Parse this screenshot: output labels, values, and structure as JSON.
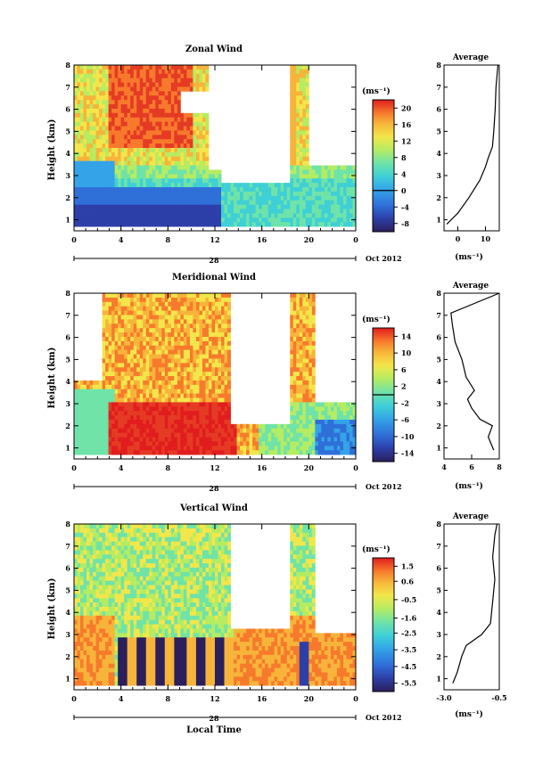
{
  "chart_data": [
    {
      "type": "heatmap",
      "title": "Zonal Wind",
      "ylabel": "Height (km)",
      "xticks": [
        "0",
        "4",
        "8",
        "12",
        "16",
        "20",
        "0"
      ],
      "yticks": [
        "1",
        "2",
        "3",
        "4",
        "5",
        "6",
        "7",
        "8"
      ],
      "date_label": "Oct 2012",
      "date_day": "28",
      "units": "(ms⁻¹)",
      "colorbar": {
        "ticks": [
          "20",
          "16",
          "12",
          "8",
          "4",
          "0",
          "-4",
          "-8"
        ],
        "min": -10,
        "max": 22,
        "zero_line": 0
      },
      "profile": {
        "title": "Average",
        "xticks": [
          "0",
          "10"
        ],
        "xlim": [
          -5,
          15
        ],
        "yticks": [
          "1",
          "2",
          "3",
          "4",
          "5",
          "6",
          "7",
          "8"
        ],
        "xlabel": "(ms⁻¹)",
        "points": [
          [
            -4,
            0.8
          ],
          [
            0,
            1.3
          ],
          [
            4,
            2.0
          ],
          [
            8,
            2.8
          ],
          [
            10,
            3.4
          ],
          [
            11,
            3.8
          ],
          [
            12.5,
            4.3
          ],
          [
            13,
            5.0
          ],
          [
            13.5,
            6.0
          ],
          [
            13.8,
            7.0
          ],
          [
            14.5,
            8.0
          ]
        ]
      }
    },
    {
      "type": "heatmap",
      "title": "Meridional Wind",
      "ylabel": "Height (km)",
      "xticks": [
        "0",
        "4",
        "8",
        "12",
        "16",
        "20",
        "0"
      ],
      "yticks": [
        "1",
        "2",
        "3",
        "4",
        "5",
        "6",
        "7",
        "8"
      ],
      "date_label": "Oct 2012",
      "date_day": "28",
      "units": "(ms⁻¹)",
      "colorbar": {
        "ticks": [
          "14",
          "10",
          "6",
          "2",
          "-2",
          "-6",
          "-10",
          "-14"
        ],
        "min": -16,
        "max": 16,
        "zero_line": 0
      },
      "profile": {
        "title": "Average",
        "xticks": [
          "4",
          "6",
          "8"
        ],
        "xlim": [
          4,
          8
        ],
        "yticks": [
          "1",
          "2",
          "3",
          "4",
          "5",
          "6",
          "7",
          "8"
        ],
        "xlabel": "(ms⁻¹)",
        "points": [
          [
            7.6,
            0.9
          ],
          [
            7.2,
            1.5
          ],
          [
            7.5,
            2.0
          ],
          [
            6.6,
            2.3
          ],
          [
            6.0,
            2.8
          ],
          [
            5.7,
            3.2
          ],
          [
            6.2,
            3.6
          ],
          [
            5.6,
            4.2
          ],
          [
            5.3,
            5.0
          ],
          [
            4.8,
            5.8
          ],
          [
            4.6,
            6.6
          ],
          [
            4.5,
            7.1
          ],
          [
            8.0,
            8.0
          ]
        ]
      }
    },
    {
      "type": "heatmap",
      "title": "Vertical Wind",
      "ylabel": "Height (km)",
      "xlabel": "Local Time",
      "xticks": [
        "0",
        "4",
        "8",
        "12",
        "16",
        "20",
        "0"
      ],
      "yticks": [
        "1",
        "2",
        "3",
        "4",
        "5",
        "6",
        "7",
        "8"
      ],
      "date_label": "Oct 2012",
      "date_day": "28",
      "units": "(ms⁻¹)",
      "colorbar": {
        "ticks": [
          "1.5",
          "0.6",
          "-0.5",
          "-1.6",
          "-2.5",
          "-3.5",
          "-4.5",
          "-5.5"
        ],
        "min": -6.0,
        "max": 2.0,
        "zero_line": null
      },
      "profile": {
        "title": "Average",
        "xticks": [
          "-3.0",
          "-0.5"
        ],
        "xlim": [
          -3.0,
          -0.5
        ],
        "yticks": [
          "1",
          "2",
          "3",
          "4",
          "5",
          "6",
          "7",
          "8"
        ],
        "xlabel": "(ms⁻¹)",
        "points": [
          [
            -2.6,
            0.8
          ],
          [
            -2.4,
            1.3
          ],
          [
            -2.2,
            2.0
          ],
          [
            -2.0,
            2.5
          ],
          [
            -1.3,
            3.0
          ],
          [
            -0.9,
            3.5
          ],
          [
            -0.8,
            4.5
          ],
          [
            -0.7,
            5.5
          ],
          [
            -0.8,
            6.5
          ],
          [
            -0.7,
            7.5
          ],
          [
            -0.6,
            8.0
          ]
        ]
      }
    }
  ],
  "colors": {
    "scale": [
      "#2b1f5c",
      "#2d3fa8",
      "#2f6fd8",
      "#34a3e8",
      "#3fd0d6",
      "#6fe3a8",
      "#b5ec62",
      "#f3e64a",
      "#f7b43a",
      "#f77a2c",
      "#e53a24",
      "#e11d1d"
    ]
  }
}
